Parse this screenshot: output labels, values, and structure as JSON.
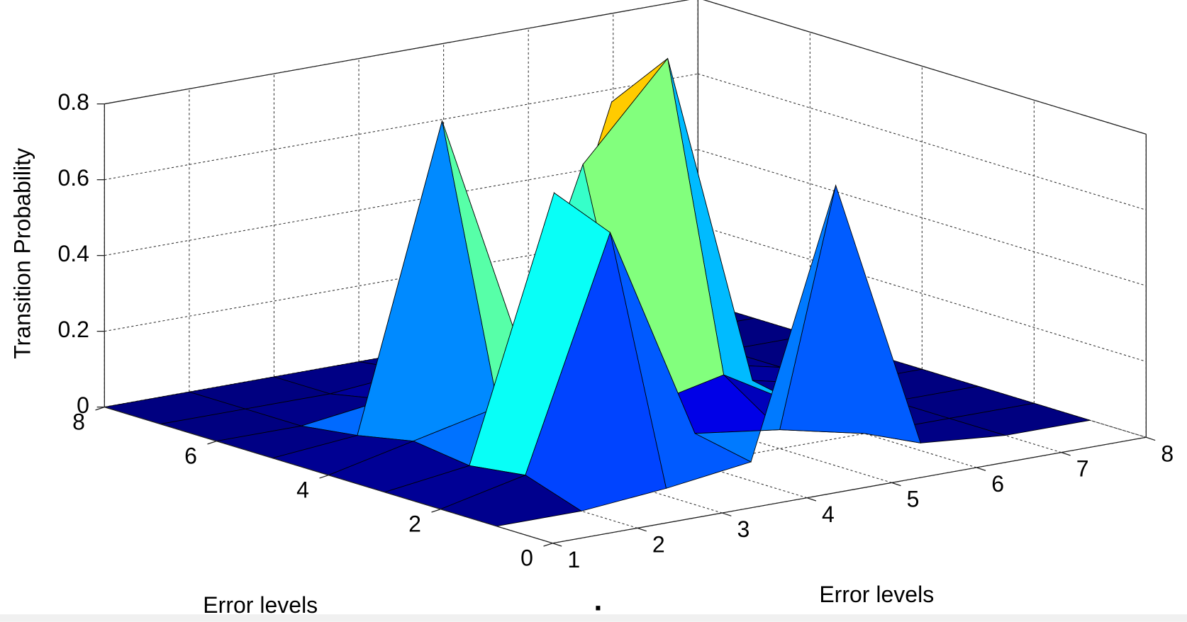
{
  "chart_data": {
    "type": "surface",
    "zlabel": "Transition Probability",
    "xlabel": "Error levels",
    "ylabel": "Error levels",
    "annotation": ".",
    "x": [
      1,
      2,
      3,
      4,
      5,
      6,
      7,
      8
    ],
    "y": [
      1,
      2,
      3,
      4,
      5,
      6,
      7,
      8
    ],
    "z": [
      [
        0,
        0,
        0.02,
        0.05,
        0.74,
        0.02,
        0,
        0
      ],
      [
        0,
        0.05,
        0.65,
        0.08,
        0.05,
        0,
        0,
        0
      ],
      [
        0,
        0.03,
        0.71,
        0.1,
        0.15,
        0.02,
        0,
        0
      ],
      [
        0,
        0.05,
        0.1,
        0.7,
        0.94,
        0.05,
        0,
        0
      ],
      [
        0,
        0.02,
        0.81,
        0.12,
        0.78,
        0.05,
        0,
        0
      ],
      [
        0,
        0,
        0.03,
        0.05,
        0.04,
        0,
        0,
        0
      ],
      [
        0,
        0,
        0,
        0.02,
        0.02,
        0,
        0,
        0
      ],
      [
        0,
        0,
        0,
        0,
        0,
        0,
        0,
        0
      ]
    ],
    "xlim": [
      1,
      8
    ],
    "xticks": [
      1,
      2,
      3,
      4,
      5,
      6,
      7,
      8
    ],
    "ylim": [
      0,
      8
    ],
    "yticks": [
      0,
      2,
      4,
      6,
      8
    ],
    "zlim": [
      0,
      0.8
    ],
    "zticks": [
      0,
      0.2,
      0.4,
      0.6,
      0.8
    ],
    "grid": true,
    "colormap": "jet"
  }
}
